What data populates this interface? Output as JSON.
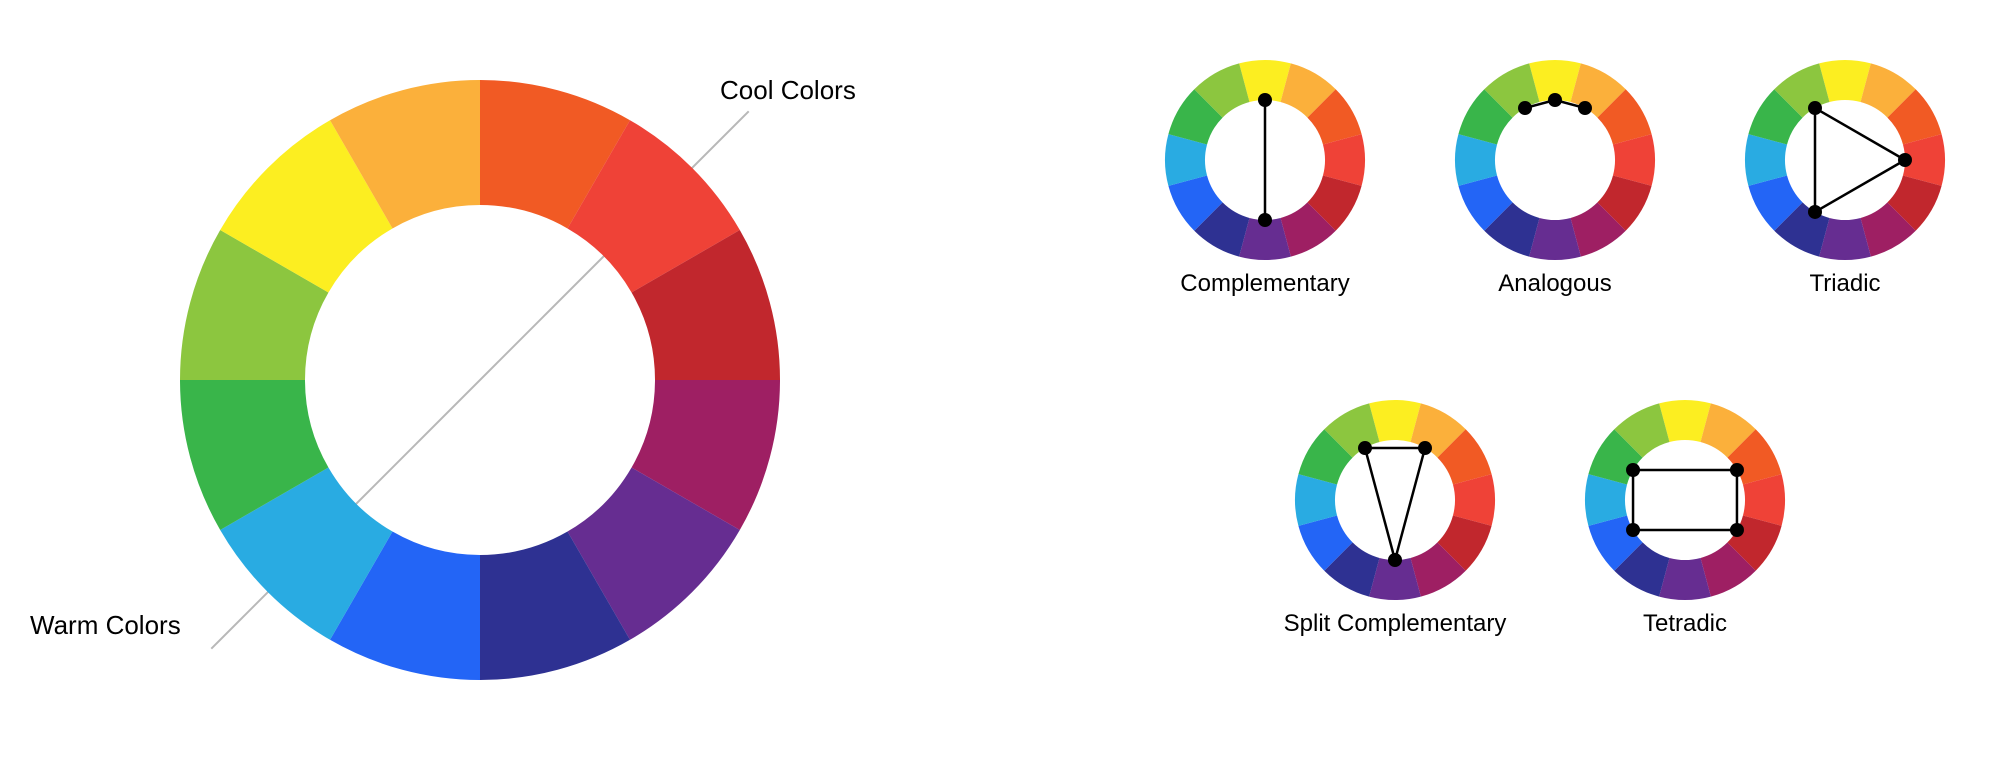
{
  "background_color": "#ffffff",
  "text_color": "#000000",
  "label_fontsize": 26,
  "scheme_label_fontsize": 24,
  "divider_color": "#b8b8b8",
  "divider_width": 2,
  "marker_radius": 7,
  "stroke_color": "#000000",
  "stroke_width": 2.5,
  "big_wheel": {
    "diameter": 600,
    "outer_radius": 300,
    "inner_radius": 175,
    "label_cool": "Cool Colors",
    "label_warm": "Warm Colors",
    "divider_angle_deg": 45,
    "colors": [
      "#f15a24",
      "#ef4237",
      "#c1272d",
      "#9e1f63",
      "#662d91",
      "#2e3192",
      "#2365f6",
      "#29abe2",
      "#39b54a",
      "#8cc63f",
      "#fcee21",
      "#fbb03b"
    ],
    "slice_start_angle_deg": -90
  },
  "small_wheel": {
    "diameter": 200,
    "outer_radius": 100,
    "inner_radius": 60,
    "marker_radius": 60,
    "colors": [
      "#fcee21",
      "#fbb03b",
      "#f15a24",
      "#ef4237",
      "#c1272d",
      "#9e1f63",
      "#662d91",
      "#2e3192",
      "#2365f6",
      "#29abe2",
      "#39b54a",
      "#8cc63f"
    ],
    "slice_start_angle_deg": -105
  },
  "schemes": [
    {
      "name": "Complementary",
      "nodes": [
        0,
        6
      ],
      "edges": [
        [
          0,
          6
        ]
      ]
    },
    {
      "name": "Analogous",
      "nodes": [
        11,
        0,
        1
      ],
      "edges": [
        [
          11,
          0
        ],
        [
          0,
          1
        ]
      ]
    },
    {
      "name": "Triadic",
      "nodes": [
        11,
        3,
        7
      ],
      "edges": [
        [
          11,
          3
        ],
        [
          3,
          7
        ],
        [
          7,
          11
        ]
      ]
    },
    {
      "name": "Split Complementary",
      "nodes": [
        11,
        1,
        6
      ],
      "edges": [
        [
          11,
          1
        ],
        [
          1,
          6
        ],
        [
          6,
          11
        ]
      ]
    },
    {
      "name": "Tetradic",
      "nodes": [
        10,
        2,
        4,
        8
      ],
      "edges": [
        [
          10,
          2
        ],
        [
          2,
          4
        ],
        [
          4,
          8
        ],
        [
          8,
          10
        ]
      ]
    }
  ]
}
